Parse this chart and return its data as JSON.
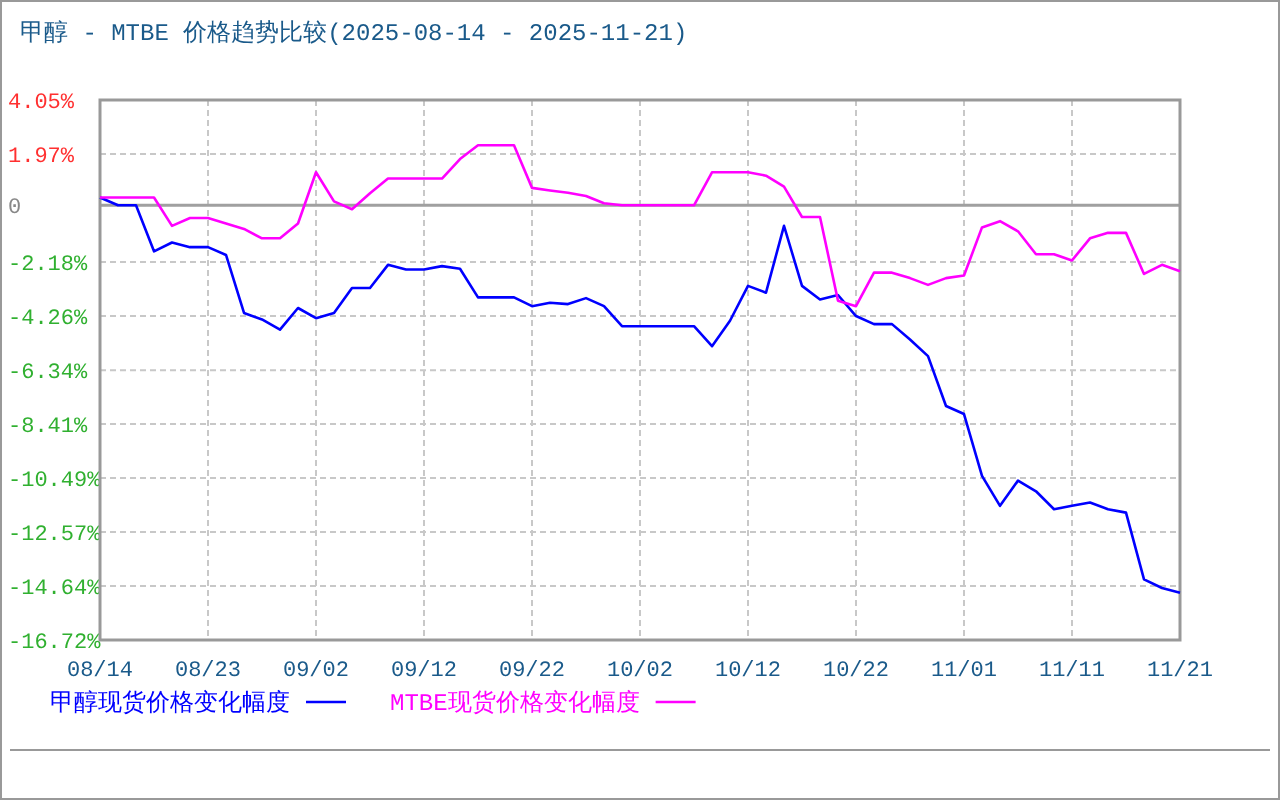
{
  "chart_data": {
    "type": "line",
    "title": "甲醇 - MTBE 价格趋势比较(2025-08-14 - 2025-11-21)",
    "categories": [
      "08/14",
      null,
      null,
      null,
      null,
      null,
      "08/23",
      null,
      null,
      null,
      null,
      null,
      "09/02",
      null,
      null,
      null,
      null,
      null,
      "09/12",
      null,
      null,
      null,
      null,
      null,
      "09/22",
      null,
      null,
      null,
      null,
      null,
      "10/02",
      null,
      null,
      null,
      null,
      null,
      "10/12",
      null,
      null,
      null,
      null,
      null,
      "10/22",
      null,
      null,
      null,
      null,
      null,
      "11/01",
      null,
      null,
      null,
      null,
      null,
      "11/11",
      null,
      null,
      null,
      null,
      null,
      "11/21"
    ],
    "series": [
      {
        "name": "甲醇现货价格变化幅度",
        "color": "#0000ff",
        "values": [
          0.3,
          0,
          0,
          -1.77,
          -1.43,
          -1.61,
          -1.61,
          -1.91,
          -4.14,
          -4.39,
          -4.78,
          -3.95,
          -4.34,
          -4.14,
          -3.18,
          -3.18,
          -2.29,
          -2.47,
          -2.47,
          -2.34,
          -2.44,
          -3.54,
          -3.54,
          -3.54,
          -3.88,
          -3.75,
          -3.8,
          -3.57,
          -3.88,
          -4.65,
          -4.65,
          -4.65,
          -4.65,
          -4.65,
          -5.42,
          -4.44,
          -3.1,
          -3.36,
          -0.79,
          -3.1,
          -3.62,
          -3.45,
          -4.26,
          -4.57,
          -4.57,
          -5.16,
          -5.8,
          -7.72,
          -8.03,
          -10.41,
          -11.56,
          -10.59,
          -11.0,
          -11.69,
          -11.56,
          -11.43,
          -11.69,
          -11.82,
          -14.39,
          -14.72,
          -14.9
        ]
      },
      {
        "name": "MTBE现货价格变化幅度",
        "color": "#ff00ff",
        "values": [
          0.3,
          0.3,
          0.3,
          0.3,
          -0.79,
          -0.49,
          -0.49,
          -0.7,
          -0.91,
          -1.27,
          -1.27,
          -0.7,
          1.27,
          0.15,
          -0.15,
          0.46,
          1.03,
          1.03,
          1.03,
          1.03,
          1.78,
          2.31,
          2.31,
          2.31,
          0.67,
          0.57,
          0.48,
          0.36,
          0.08,
          0,
          0,
          0,
          0,
          0,
          1.27,
          1.27,
          1.27,
          1.14,
          0.72,
          -0.45,
          -0.45,
          -3.67,
          -3.88,
          -2.59,
          -2.59,
          -2.8,
          -3.06,
          -2.8,
          -2.7,
          -0.85,
          -0.61,
          -1.0,
          -1.88,
          -1.88,
          -2.12,
          -1.27,
          -1.06,
          -1.06,
          -2.64,
          -2.29,
          -2.54
        ]
      }
    ],
    "ylim": [
      -16.72,
      4.05
    ],
    "yticks": [
      {
        "value": 4.05,
        "label": "4.05%"
      },
      {
        "value": 1.97,
        "label": "1.97%"
      },
      0,
      {
        "value": -2.18,
        "label": "-2.18%"
      },
      {
        "value": -4.26,
        "label": "-4.26%"
      },
      {
        "value": -6.34,
        "label": "-6.34%"
      },
      {
        "value": -8.41,
        "label": "-8.41%"
      },
      {
        "value": -10.49,
        "label": "-10.49%"
      },
      {
        "value": -12.57,
        "label": "-12.57%"
      },
      {
        "value": -14.64,
        "label": "-14.64%"
      },
      {
        "value": -16.72,
        "label": "-16.72%"
      }
    ],
    "grid": true,
    "legend": "bottom",
    "ref_lines": [
      {
        "axis": "y",
        "value": 0,
        "color": "#a0a0a0"
      }
    ]
  }
}
